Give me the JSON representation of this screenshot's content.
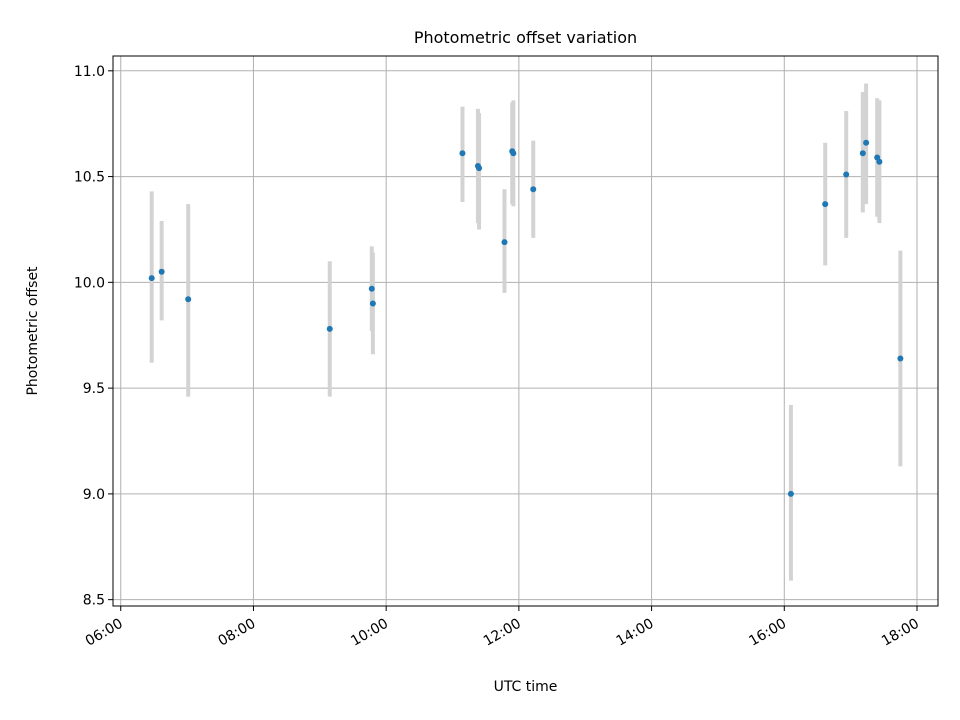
{
  "chart_data": {
    "type": "scatter",
    "title": "Photometric offset variation",
    "xlabel": "UTC time",
    "ylabel": "Photometric offset",
    "x_axis_type": "time",
    "x_tick_labels": [
      "06:00",
      "08:00",
      "10:00",
      "12:00",
      "14:00",
      "16:00",
      "18:00"
    ],
    "y_tick_labels": [
      "8.5",
      "9.0",
      "9.5",
      "10.0",
      "10.5",
      "11.0"
    ],
    "y_ticks": [
      8.5,
      9.0,
      9.5,
      10.0,
      10.5,
      11.0
    ],
    "x_range": [
      "05:53",
      "18:19"
    ],
    "ylim": [
      8.47,
      11.07
    ],
    "grid": true,
    "legend": "none",
    "colors": {
      "points": "#1f77b4",
      "error_bars": "#d3d3d3"
    },
    "series": [
      {
        "points": [
          {
            "x": "06:28",
            "y": 10.02,
            "yerr_low": 9.62,
            "yerr_high": 10.43
          },
          {
            "x": "06:37",
            "y": 10.05,
            "yerr_low": 9.82,
            "yerr_high": 10.29
          },
          {
            "x": "07:01",
            "y": 9.92,
            "yerr_low": 9.46,
            "yerr_high": 10.37
          },
          {
            "x": "09:09",
            "y": 9.78,
            "yerr_low": 9.46,
            "yerr_high": 10.1
          },
          {
            "x": "09:47",
            "y": 9.97,
            "yerr_low": 9.77,
            "yerr_high": 10.17
          },
          {
            "x": "09:48",
            "y": 9.9,
            "yerr_low": 9.66,
            "yerr_high": 10.14
          },
          {
            "x": "11:09",
            "y": 10.61,
            "yerr_low": 10.38,
            "yerr_high": 10.83
          },
          {
            "x": "11:23",
            "y": 10.55,
            "yerr_low": 10.28,
            "yerr_high": 10.82
          },
          {
            "x": "11:24",
            "y": 10.54,
            "yerr_low": 10.25,
            "yerr_high": 10.8
          },
          {
            "x": "11:47",
            "y": 10.19,
            "yerr_low": 9.95,
            "yerr_high": 10.44
          },
          {
            "x": "11:54",
            "y": 10.62,
            "yerr_low": 10.37,
            "yerr_high": 10.85
          },
          {
            "x": "11:55",
            "y": 10.61,
            "yerr_low": 10.36,
            "yerr_high": 10.86
          },
          {
            "x": "12:13",
            "y": 10.44,
            "yerr_low": 10.21,
            "yerr_high": 10.67
          },
          {
            "x": "16:06",
            "y": 9.0,
            "yerr_low": 8.59,
            "yerr_high": 9.42
          },
          {
            "x": "16:37",
            "y": 10.37,
            "yerr_low": 10.08,
            "yerr_high": 10.66
          },
          {
            "x": "16:56",
            "y": 10.51,
            "yerr_low": 10.21,
            "yerr_high": 10.81
          },
          {
            "x": "17:11",
            "y": 10.61,
            "yerr_low": 10.33,
            "yerr_high": 10.9
          },
          {
            "x": "17:14",
            "y": 10.66,
            "yerr_low": 10.37,
            "yerr_high": 10.94
          },
          {
            "x": "17:24",
            "y": 10.59,
            "yerr_low": 10.31,
            "yerr_high": 10.87
          },
          {
            "x": "17:26",
            "y": 10.57,
            "yerr_low": 10.28,
            "yerr_high": 10.86
          },
          {
            "x": "17:45",
            "y": 9.64,
            "yerr_low": 9.13,
            "yerr_high": 10.15
          }
        ]
      }
    ]
  }
}
